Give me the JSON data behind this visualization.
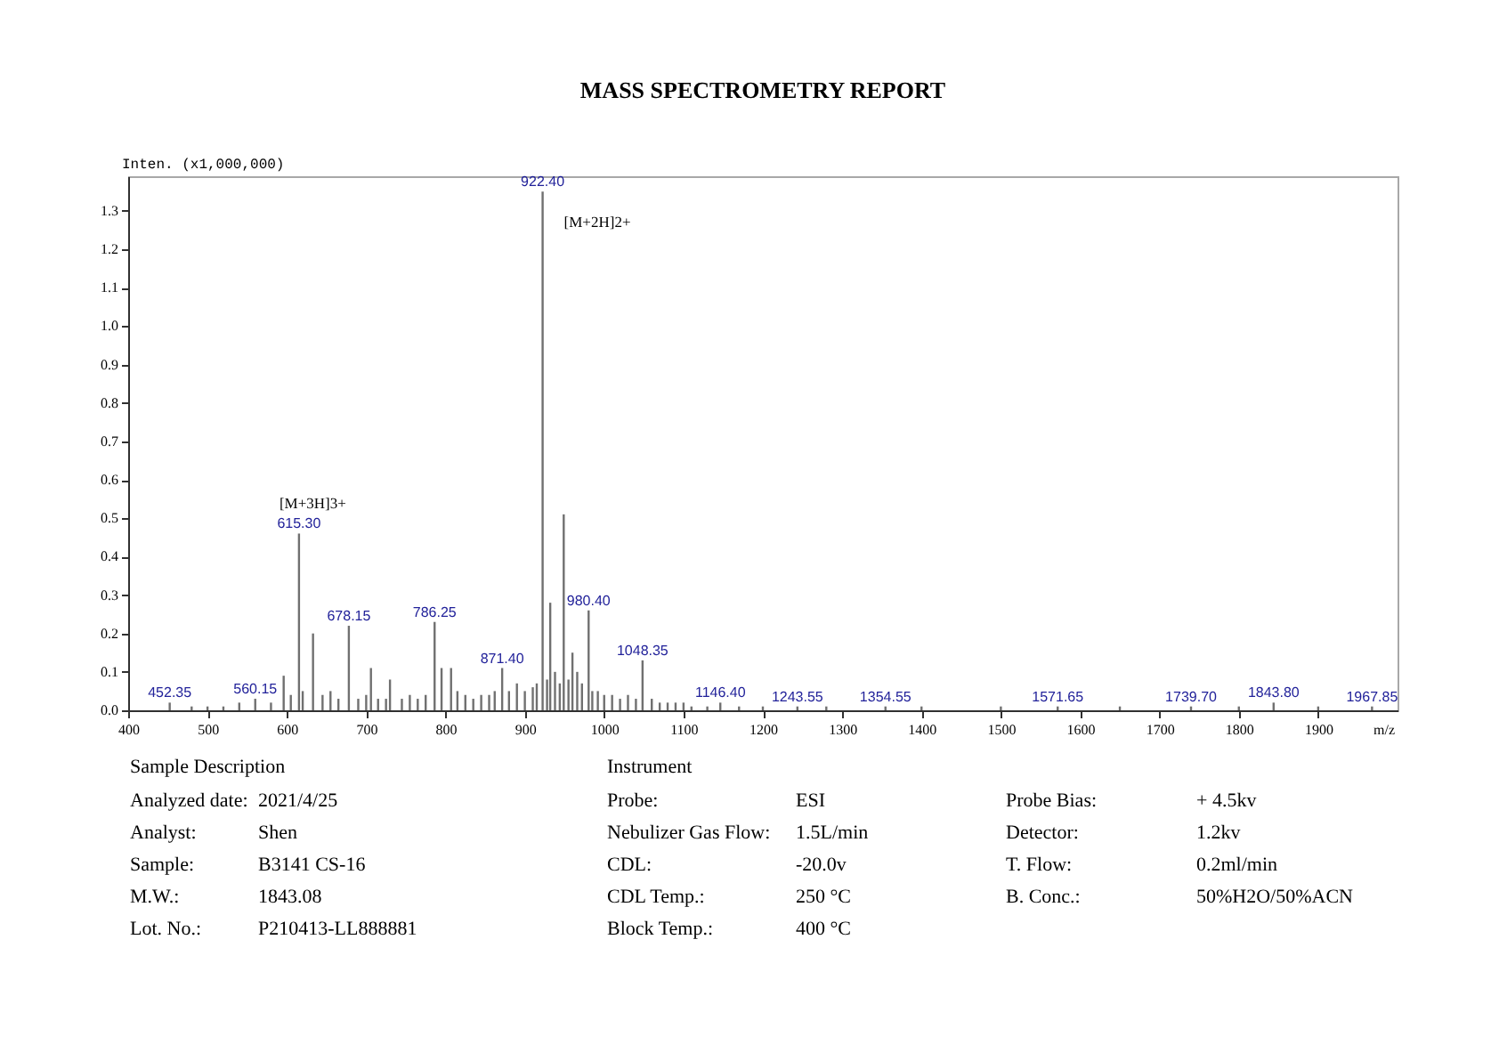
{
  "chart_data": [
    {
      "type": "bar",
      "title": "MASS SPECTROMETRY REPORT",
      "xlabel": "m/z",
      "ylabel": "Inten. (x1,000,000)",
      "color": "#707070",
      "x": [
        452.35,
        480,
        500,
        520,
        540,
        560.15,
        580,
        596,
        605,
        615.3,
        620,
        633,
        645,
        655,
        665,
        678.15,
        690,
        700,
        706,
        715,
        725,
        730,
        745,
        755,
        765,
        775,
        786.25,
        795,
        807,
        815,
        825,
        835,
        845,
        855,
        862,
        871.4,
        880,
        890,
        900,
        910,
        915,
        922.4,
        928,
        932,
        938,
        944,
        949,
        955,
        960,
        966,
        972,
        980.4,
        985,
        992,
        1000,
        1010,
        1020,
        1030,
        1040,
        1048.35,
        1060,
        1070,
        1080,
        1090,
        1100,
        1110,
        1130,
        1146.4,
        1170,
        1200,
        1243.55,
        1280,
        1354.55,
        1400,
        1500,
        1571.65,
        1650,
        1739.7,
        1800,
        1843.8,
        1900,
        1967.85
      ],
      "values": [
        0.02,
        0.01,
        0.01,
        0.01,
        0.02,
        0.03,
        0.02,
        0.09,
        0.04,
        0.46,
        0.05,
        0.2,
        0.04,
        0.05,
        0.03,
        0.22,
        0.03,
        0.04,
        0.11,
        0.03,
        0.03,
        0.08,
        0.03,
        0.04,
        0.03,
        0.04,
        0.23,
        0.11,
        0.11,
        0.05,
        0.04,
        0.03,
        0.04,
        0.04,
        0.05,
        0.11,
        0.05,
        0.07,
        0.05,
        0.06,
        0.07,
        1.35,
        0.08,
        0.28,
        0.1,
        0.07,
        0.51,
        0.08,
        0.15,
        0.1,
        0.07,
        0.26,
        0.05,
        0.05,
        0.04,
        0.04,
        0.03,
        0.04,
        0.03,
        0.13,
        0.03,
        0.02,
        0.02,
        0.02,
        0.02,
        0.01,
        0.01,
        0.02,
        0.01,
        0.01,
        0.01,
        0.01,
        0.01,
        0.01,
        0.01,
        0.01,
        0.01,
        0.01,
        0.01,
        0.02,
        0.01,
        0.01
      ],
      "annotations": [
        {
          "text": "452.35",
          "x": 452.35,
          "y": 0.02
        },
        {
          "text": "560.15",
          "x": 560.15,
          "y": 0.03
        },
        {
          "text": "615.30",
          "x": 615.3,
          "y": 0.46
        },
        {
          "text": "678.15",
          "x": 678.15,
          "y": 0.22
        },
        {
          "text": "786.25",
          "x": 786.25,
          "y": 0.23
        },
        {
          "text": "871.40",
          "x": 871.4,
          "y": 0.11
        },
        {
          "text": "922.40",
          "x": 922.4,
          "y": 1.35
        },
        {
          "text": "980.40",
          "x": 980.4,
          "y": 0.26
        },
        {
          "text": "1048.35",
          "x": 1048.35,
          "y": 0.13
        },
        {
          "text": "1146.40",
          "x": 1146.4,
          "y": 0.02
        },
        {
          "text": "1243.55",
          "x": 1243.55,
          "y": 0.01
        },
        {
          "text": "1354.55",
          "x": 1354.55,
          "y": 0.01
        },
        {
          "text": "1571.65",
          "x": 1571.65,
          "y": 0.01
        },
        {
          "text": "1739.70",
          "x": 1739.7,
          "y": 0.01
        },
        {
          "text": "1843.80",
          "x": 1843.8,
          "y": 0.02
        },
        {
          "text": "1967.85",
          "x": 1967.85,
          "y": 0.01
        },
        {
          "text": "[M+3H]3+",
          "x": 615.3,
          "y": 0.46
        },
        {
          "text": "[M+2H]2+",
          "x": 922.4,
          "y": 1.35
        }
      ],
      "xlim": [
        400,
        2000
      ],
      "xticks": [
        400,
        500,
        600,
        700,
        800,
        900,
        1000,
        1100,
        1200,
        1300,
        1400,
        1500,
        1600,
        1700,
        1800,
        1900
      ],
      "ylim": [
        0,
        1.39
      ],
      "yticks": [
        {
          "value": 0,
          "label": "0.0"
        },
        0.1,
        0.2,
        0.3,
        0.4,
        0.5,
        0.6,
        0.7,
        0.8,
        0.9,
        {
          "value": 1,
          "label": "1.0"
        },
        1.1,
        1.2,
        1.3
      ]
    },
    {
      "type": "other",
      "title": "Sample Description",
      "annotations": [
        "Analyzed date:",
        "2021/4/25",
        "Analyst:",
        "Shen",
        "Sample:",
        "B3141 CS-16",
        "M.W.:",
        "1843.08",
        "Lot. No.:",
        "P210413-LL888881"
      ]
    },
    {
      "type": "other",
      "title": "Instrument",
      "annotations": [
        "Probe:",
        "ESI",
        "Probe Bias:",
        "+ 4.5kv",
        "Nebulizer Gas Flow:",
        "1.5L/min",
        "Detector:",
        "1.2kv",
        "CDL:",
        "-20.0v",
        "T. Flow:",
        "0.2ml/min",
        "CDL Temp.:",
        "250 °C",
        "B. Conc.:",
        "50%H2O/50%ACN",
        "Block Temp.:",
        "400 °C"
      ]
    }
  ]
}
